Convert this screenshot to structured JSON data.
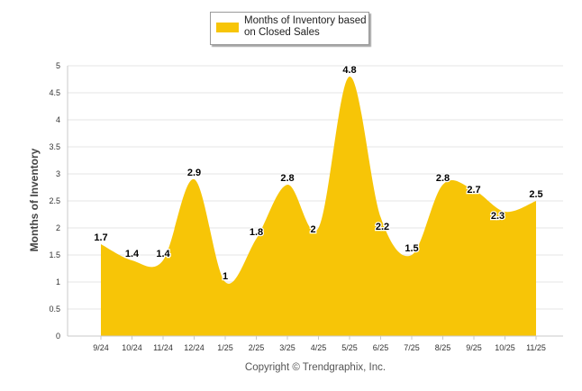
{
  "chart_data": {
    "type": "area",
    "categories": [
      "9/24",
      "10/24",
      "11/24",
      "12/24",
      "1/25",
      "2/25",
      "3/25",
      "4/25",
      "5/25",
      "6/25",
      "7/25",
      "8/25",
      "9/25",
      "10/25",
      "11/25"
    ],
    "series": [
      {
        "name": "Months of Inventory based on Closed Sales",
        "values": [
          1.7,
          1.4,
          1.4,
          2.9,
          1,
          1.8,
          2.8,
          2,
          4.8,
          2.2,
          1.5,
          2.8,
          2.7,
          2.3,
          2.5
        ],
        "color": "#f7c507"
      }
    ],
    "data_labels": [
      "1.7",
      "1.4",
      "1.4",
      "2.9",
      "1",
      "1.8",
      "2.8",
      "2",
      "4.8",
      "2.2",
      "1.5",
      "2.8",
      "2.7",
      "2.3",
      "2.5"
    ],
    "ylabel": "Months of Inventory",
    "xlabel": "",
    "ylim": [
      0,
      5
    ],
    "yticks": [
      "0",
      "0.5",
      "1",
      "1.5",
      "2",
      "2.5",
      "3",
      "3.5",
      "4",
      "4.5",
      "5"
    ],
    "grid": true,
    "legend_position": "top-center"
  },
  "legend": {
    "text": "Months of Inventory based on Closed Sales"
  },
  "footer": {
    "credit": "Copyright © Trendgraphix, Inc."
  }
}
